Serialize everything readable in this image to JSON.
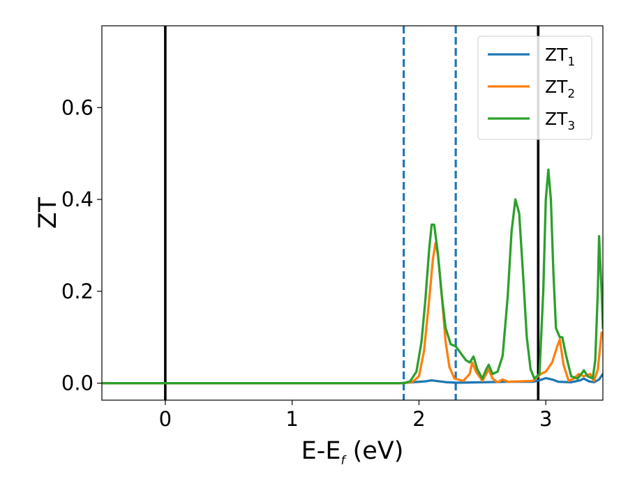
{
  "chart_data": {
    "type": "line",
    "xlabel": "E-E",
    "xlabel_sub": "f",
    "xlabel_unit": " (eV)",
    "ylabel": "ZT",
    "xlim": [
      -0.5,
      3.45
    ],
    "ylim": [
      -0.037,
      0.778
    ],
    "xticks": [
      0,
      1,
      2,
      3
    ],
    "xtick_labels": [
      "0",
      "1",
      "2",
      "3"
    ],
    "yticks": [
      0.0,
      0.2,
      0.4,
      0.6
    ],
    "ytick_labels": [
      "0.0",
      "0.2",
      "0.4",
      "0.6"
    ],
    "grid": false,
    "legend_position": "top-right",
    "vertical_lines": [
      {
        "x": 0.0,
        "style": "solid",
        "color": "#000000"
      },
      {
        "x": 2.94,
        "style": "solid",
        "color": "#000000"
      },
      {
        "x": 1.88,
        "style": "dashed",
        "color": "#1f77b4"
      },
      {
        "x": 2.29,
        "style": "dashed",
        "color": "#1f77b4"
      }
    ],
    "series": [
      {
        "name": "ZT",
        "name_sub": "1",
        "color": "#1f77b4",
        "points": [
          [
            -0.5,
            0
          ],
          [
            1.85,
            0
          ],
          [
            1.95,
            0.002
          ],
          [
            2.05,
            0.004
          ],
          [
            2.1,
            0.006
          ],
          [
            2.16,
            0.004
          ],
          [
            2.22,
            0.002
          ],
          [
            2.3,
            0.001
          ],
          [
            2.5,
            0.002
          ],
          [
            2.7,
            0.003
          ],
          [
            2.9,
            0.003
          ],
          [
            2.97,
            0.008
          ],
          [
            3.0,
            0.011
          ],
          [
            3.05,
            0.008
          ],
          [
            3.1,
            0.003
          ],
          [
            3.2,
            0.002
          ],
          [
            3.27,
            0.006
          ],
          [
            3.3,
            0.01
          ],
          [
            3.34,
            0.004
          ],
          [
            3.38,
            0.002
          ],
          [
            3.42,
            0.008
          ],
          [
            3.45,
            0.02
          ]
        ]
      },
      {
        "name": "ZT",
        "name_sub": "2",
        "color": "#ff7f0e",
        "points": [
          [
            -0.5,
            0
          ],
          [
            1.88,
            0
          ],
          [
            1.95,
            0.003
          ],
          [
            2.0,
            0.015
          ],
          [
            2.04,
            0.07
          ],
          [
            2.08,
            0.18
          ],
          [
            2.11,
            0.27
          ],
          [
            2.13,
            0.305
          ],
          [
            2.15,
            0.28
          ],
          [
            2.18,
            0.19
          ],
          [
            2.21,
            0.09
          ],
          [
            2.24,
            0.035
          ],
          [
            2.28,
            0.01
          ],
          [
            2.35,
            0.005
          ],
          [
            2.4,
            0.02
          ],
          [
            2.42,
            0.045
          ],
          [
            2.45,
            0.025
          ],
          [
            2.5,
            0.005
          ],
          [
            2.53,
            0.02
          ],
          [
            2.55,
            0.03
          ],
          [
            2.58,
            0.01
          ],
          [
            2.62,
            0.002
          ],
          [
            2.66,
            0.008
          ],
          [
            2.7,
            0.003
          ],
          [
            2.8,
            0.004
          ],
          [
            2.9,
            0.005
          ],
          [
            2.96,
            0.02
          ],
          [
            3.0,
            0.025
          ],
          [
            3.05,
            0.045
          ],
          [
            3.09,
            0.08
          ],
          [
            3.11,
            0.095
          ],
          [
            3.14,
            0.04
          ],
          [
            3.18,
            0.005
          ],
          [
            3.22,
            0.01
          ],
          [
            3.26,
            0.02
          ],
          [
            3.3,
            0.015
          ],
          [
            3.35,
            0.02
          ],
          [
            3.38,
            0.005
          ],
          [
            3.41,
            0.03
          ],
          [
            3.44,
            0.11
          ]
        ]
      },
      {
        "name": "ZT",
        "name_sub": "3",
        "color": "#2ca02c",
        "points": [
          [
            -0.5,
            0
          ],
          [
            1.88,
            0
          ],
          [
            1.93,
            0.004
          ],
          [
            1.98,
            0.025
          ],
          [
            2.02,
            0.09
          ],
          [
            2.05,
            0.18
          ],
          [
            2.08,
            0.29
          ],
          [
            2.1,
            0.345
          ],
          [
            2.12,
            0.345
          ],
          [
            2.15,
            0.28
          ],
          [
            2.18,
            0.19
          ],
          [
            2.21,
            0.12
          ],
          [
            2.25,
            0.085
          ],
          [
            2.29,
            0.08
          ],
          [
            2.33,
            0.065
          ],
          [
            2.37,
            0.05
          ],
          [
            2.4,
            0.045
          ],
          [
            2.43,
            0.058
          ],
          [
            2.46,
            0.03
          ],
          [
            2.5,
            0.01
          ],
          [
            2.53,
            0.03
          ],
          [
            2.55,
            0.04
          ],
          [
            2.58,
            0.02
          ],
          [
            2.62,
            0.025
          ],
          [
            2.66,
            0.06
          ],
          [
            2.7,
            0.19
          ],
          [
            2.73,
            0.33
          ],
          [
            2.76,
            0.4
          ],
          [
            2.79,
            0.37
          ],
          [
            2.82,
            0.24
          ],
          [
            2.85,
            0.1
          ],
          [
            2.88,
            0.03
          ],
          [
            2.91,
            0.01
          ],
          [
            2.95,
            0.02
          ],
          [
            2.98,
            0.2
          ],
          [
            3.0,
            0.4
          ],
          [
            3.02,
            0.465
          ],
          [
            3.04,
            0.4
          ],
          [
            3.06,
            0.24
          ],
          [
            3.08,
            0.12
          ],
          [
            3.11,
            0.1
          ],
          [
            3.13,
            0.1
          ],
          [
            3.16,
            0.06
          ],
          [
            3.2,
            0.015
          ],
          [
            3.25,
            0.01
          ],
          [
            3.28,
            0.02
          ],
          [
            3.3,
            0.028
          ],
          [
            3.33,
            0.015
          ],
          [
            3.37,
            0.01
          ],
          [
            3.39,
            0.05
          ],
          [
            3.41,
            0.2
          ],
          [
            3.42,
            0.32
          ],
          [
            3.44,
            0.2
          ],
          [
            3.45,
            0.12
          ]
        ]
      }
    ]
  }
}
